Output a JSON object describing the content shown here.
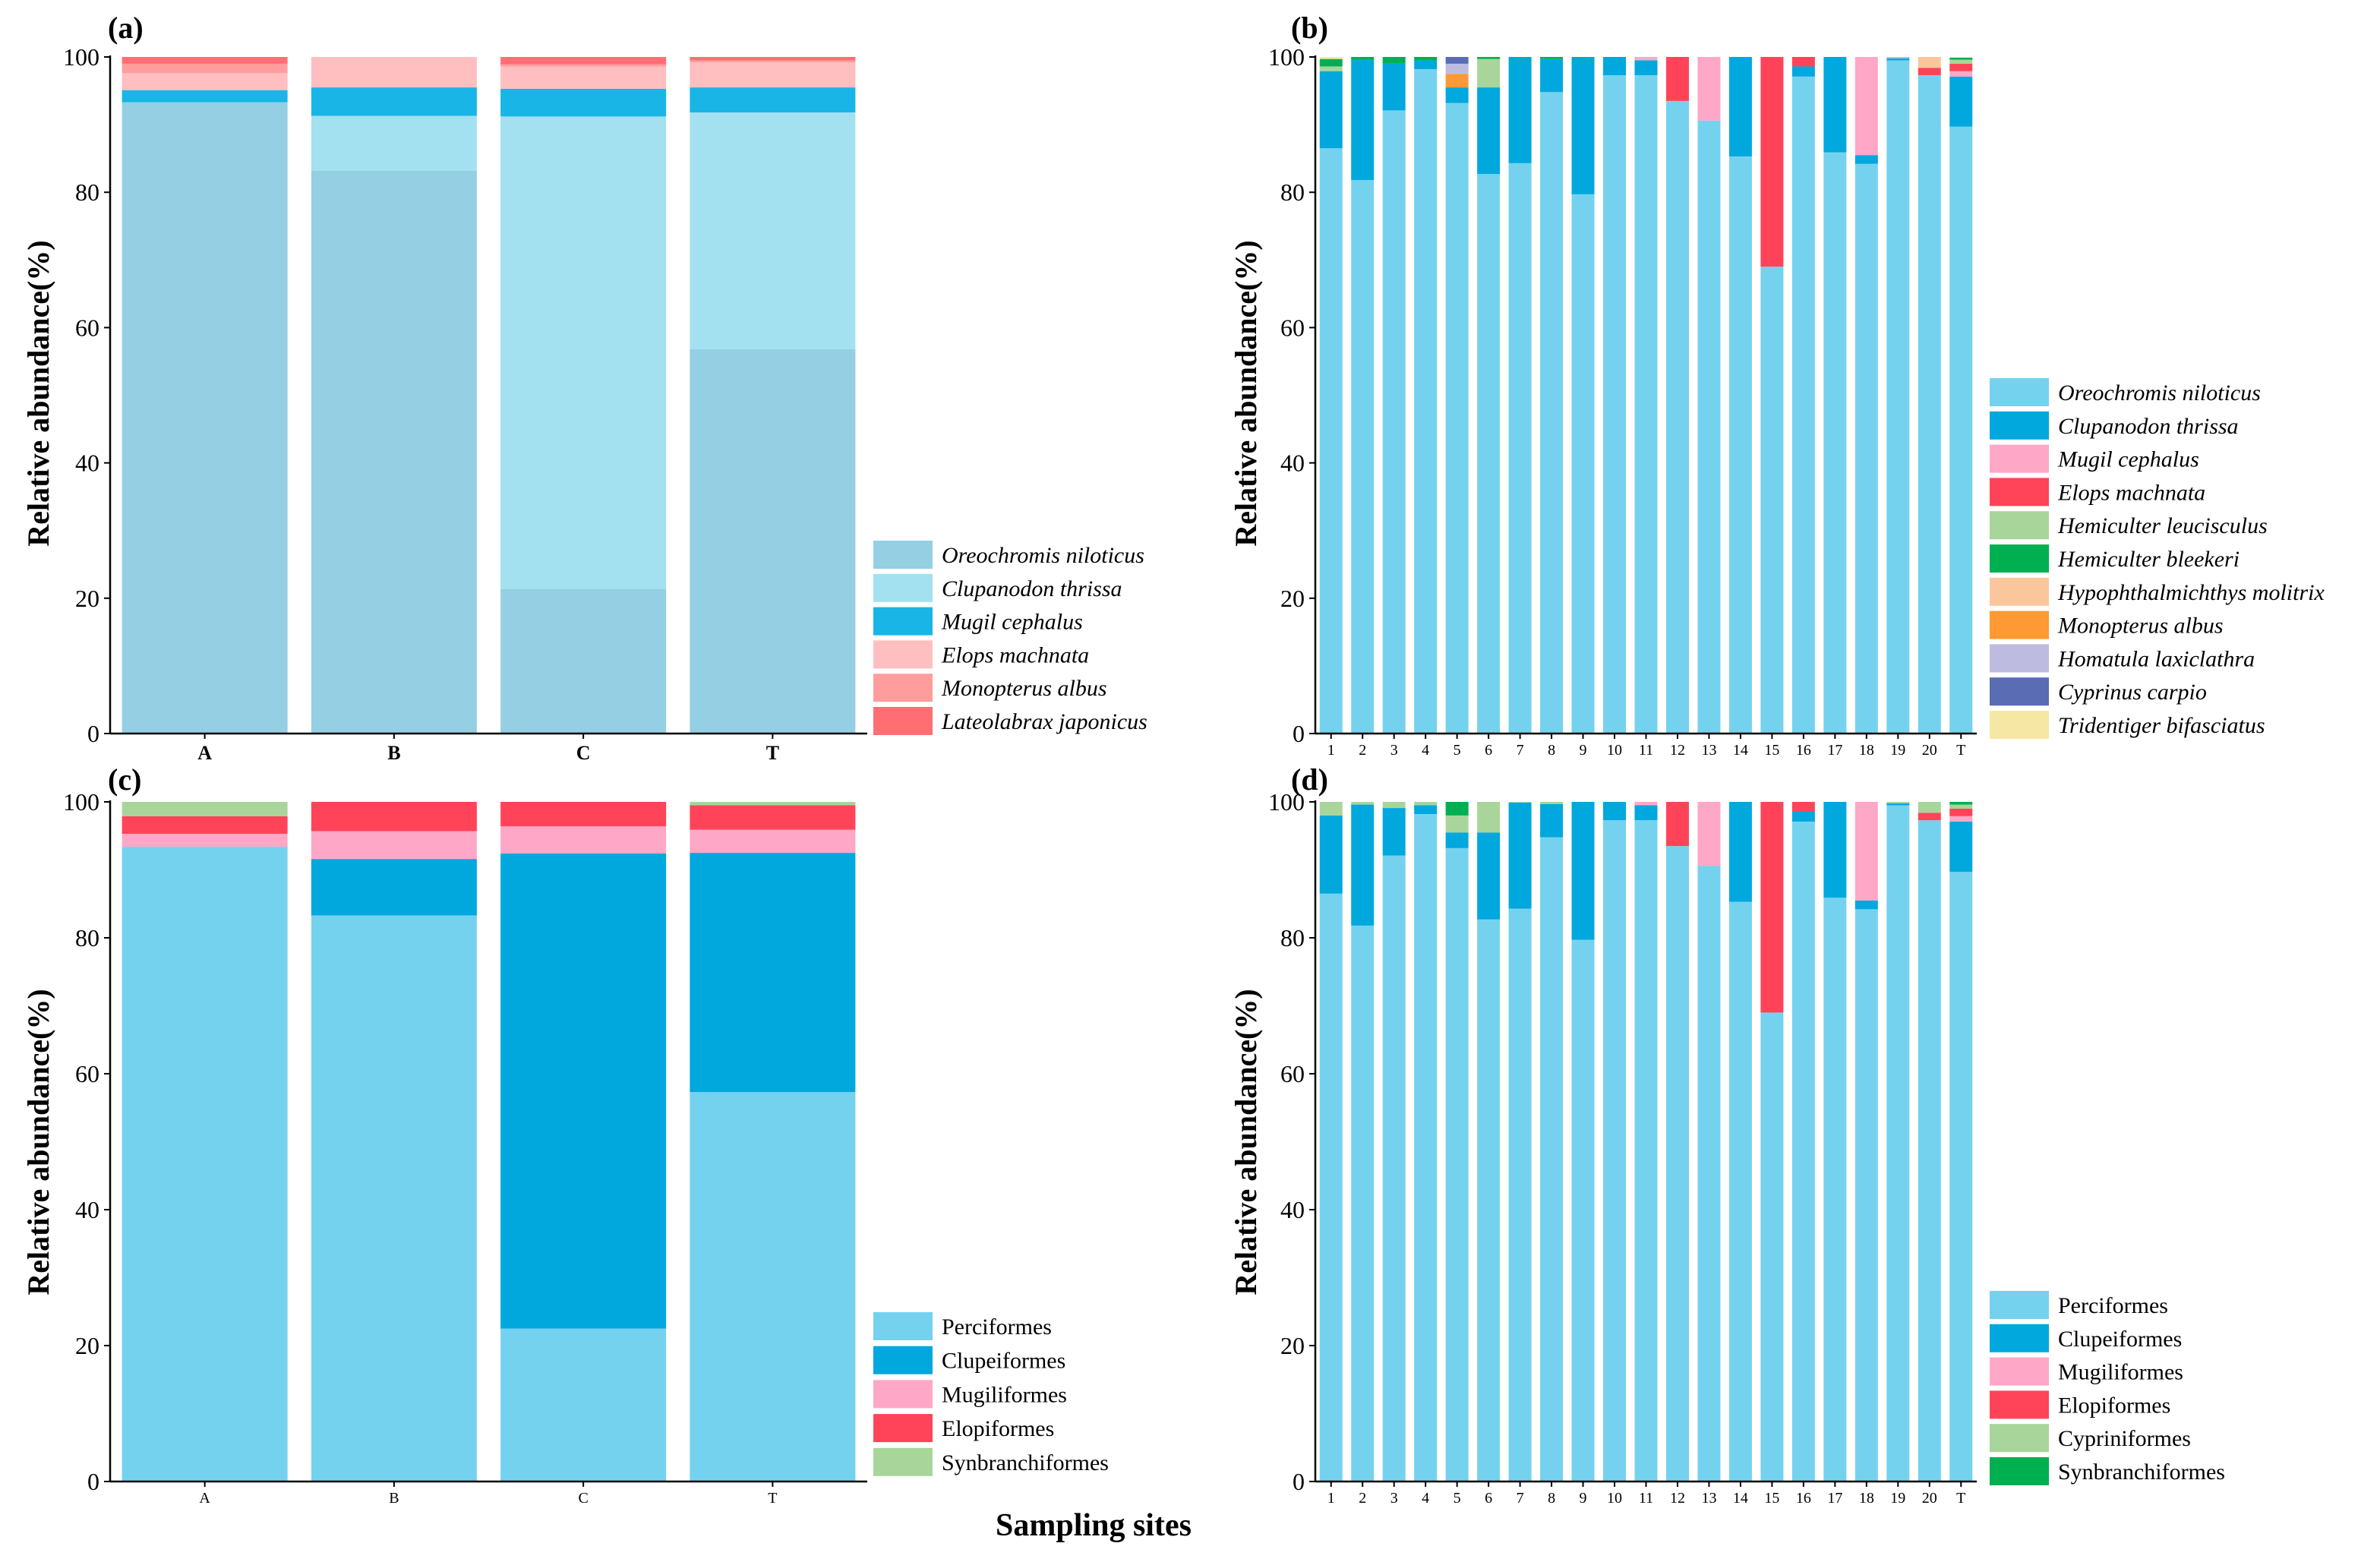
{
  "figure": {
    "x_axis_title": "Sampling sites"
  },
  "colors": {
    "oreochromis_a": "#94CFE3",
    "clupanodon_a": "#A3E1F1",
    "mugil_a": "#19B5E6",
    "elops_a": "#FFBEC0",
    "monopterus_a": "#FF9D9D",
    "lateolabrax_a": "#FF6E73",
    "light_blue": "#75D2EF",
    "blue": "#00A8DE",
    "pink": "#FFA7C6",
    "red": "#FF4459",
    "light_green": "#A8D59A",
    "green": "#00B050",
    "peach": "#FAC79D",
    "orange": "#FF9933",
    "lavender": "#BDBCE0",
    "navy": "#5A6CB4",
    "cream": "#F6E8A4"
  },
  "chart_data": [
    {
      "panel": "(a)",
      "type": "bar",
      "stacked": true,
      "ylabel": "Relative abundance(%)",
      "xlabel": "",
      "ylim": [
        0,
        100
      ],
      "yticks": [
        "0",
        "20",
        "40",
        "60",
        "80",
        "100"
      ],
      "categories": [
        "A",
        "B",
        "C",
        "T"
      ],
      "legend_italic": true,
      "series": [
        {
          "name": "Oreochromis niloticus",
          "color": "#94CFE3",
          "values": [
            93.3,
            83.2,
            21.4,
            56.8
          ]
        },
        {
          "name": "Clupanodon thrissa",
          "color": "#A3E1F1",
          "values": [
            0.0,
            8.1,
            69.8,
            35.0
          ]
        },
        {
          "name": "Mugil cephalus",
          "color": "#19B5E6",
          "values": [
            1.8,
            4.2,
            4.1,
            3.7
          ]
        },
        {
          "name": "Elops machnata",
          "color": "#FFBEC0",
          "values": [
            2.5,
            4.5,
            3.3,
            3.7
          ]
        },
        {
          "name": "Monopterus albus",
          "color": "#FF9D9D",
          "values": [
            1.4,
            0.0,
            0.3,
            0.3
          ]
        },
        {
          "name": "Lateolabrax japonicus",
          "color": "#FF6E73",
          "values": [
            1.0,
            0.0,
            1.1,
            0.5
          ]
        }
      ]
    },
    {
      "panel": "(b)",
      "type": "bar",
      "stacked": true,
      "ylabel": "Relative abundance(%)",
      "xlabel": "",
      "ylim": [
        0,
        100
      ],
      "yticks": [
        "0",
        "20",
        "40",
        "60",
        "80",
        "100"
      ],
      "categories": [
        "1",
        "2",
        "3",
        "4",
        "5",
        "6",
        "7",
        "8",
        "9",
        "10",
        "11",
        "12",
        "13",
        "14",
        "15",
        "16",
        "17",
        "18",
        "19",
        "20",
        "T"
      ],
      "legend_italic": true,
      "series": [
        {
          "name": "Oreochromis niloticus",
          "color": "#75D2EF",
          "values": [
            86.5,
            81.8,
            92.1,
            98.2,
            93.2,
            82.7,
            84.3,
            94.8,
            79.7,
            97.3,
            97.3,
            93.5,
            90.6,
            85.3,
            69.0,
            97.1,
            85.9,
            84.2,
            99.5,
            97.3,
            89.7
          ]
        },
        {
          "name": "Clupanodon thrissa",
          "color": "#00A8DE",
          "values": [
            11.4,
            17.8,
            7.0,
            1.3,
            2.3,
            12.8,
            15.6,
            4.9,
            20.2,
            2.7,
            2.2,
            0.0,
            0.0,
            14.7,
            0.0,
            1.5,
            14.1,
            1.3,
            0.3,
            0.0,
            7.4
          ]
        },
        {
          "name": "Mugil cephalus",
          "color": "#FFA7C6",
          "values": [
            0.0,
            0.0,
            0.0,
            0.0,
            0.0,
            0.0,
            0.0,
            0.0,
            0.0,
            0.0,
            0.3,
            0.0,
            9.4,
            0.0,
            0.0,
            0.0,
            0.0,
            14.5,
            0.0,
            0.0,
            0.8
          ]
        },
        {
          "name": "Elops machnata",
          "color": "#FF4459",
          "values": [
            0.0,
            0.0,
            0.0,
            0.0,
            0.0,
            0.0,
            0.0,
            0.0,
            0.0,
            0.0,
            0.0,
            6.5,
            0.0,
            0.0,
            31.0,
            1.4,
            0.0,
            0.0,
            0.0,
            1.1,
            1.1
          ]
        },
        {
          "name": "Hemiculter leucisculus",
          "color": "#A8D59A",
          "values": [
            0.7,
            0.0,
            0.0,
            0.0,
            0.0,
            4.2,
            0.0,
            0.0,
            0.0,
            0.0,
            0.0,
            0.0,
            0.0,
            0.0,
            0.0,
            0.0,
            0.0,
            0.0,
            0.0,
            0.0,
            0.6
          ]
        },
        {
          "name": "Hemiculter bleekeri",
          "color": "#00B050",
          "values": [
            1.1,
            0.4,
            0.9,
            0.5,
            0.0,
            0.3,
            0.1,
            0.3,
            0.1,
            0.0,
            0.0,
            0.0,
            0.0,
            0.0,
            0.0,
            0.0,
            0.0,
            0.0,
            0.0,
            0.0,
            0.3
          ]
        },
        {
          "name": "Hypophthalmichthys molitrix",
          "color": "#FAC79D",
          "values": [
            0.0,
            0.0,
            0.0,
            0.0,
            0.0,
            0.0,
            0.0,
            0.0,
            0.0,
            0.0,
            0.0,
            0.0,
            0.0,
            0.0,
            0.0,
            0.0,
            0.0,
            0.0,
            0.0,
            1.6,
            0.0
          ]
        },
        {
          "name": "Monopterus albus",
          "color": "#FF9933",
          "values": [
            0.0,
            0.0,
            0.0,
            0.0,
            2.0,
            0.0,
            0.0,
            0.0,
            0.0,
            0.0,
            0.0,
            0.0,
            0.0,
            0.0,
            0.0,
            0.0,
            0.0,
            0.0,
            0.0,
            0.0,
            0.0
          ]
        },
        {
          "name": "Homatula laxiclathra",
          "color": "#BDBCE0",
          "values": [
            0.0,
            0.0,
            0.0,
            0.0,
            1.5,
            0.0,
            0.0,
            0.0,
            0.0,
            0.0,
            0.2,
            0.0,
            0.0,
            0.0,
            0.0,
            0.0,
            0.0,
            0.0,
            0.2,
            0.0,
            0.0
          ]
        },
        {
          "name": "Cyprinus carpio",
          "color": "#5A6CB4",
          "values": [
            0.0,
            0.0,
            0.0,
            0.0,
            1.0,
            0.0,
            0.0,
            0.0,
            0.0,
            0.0,
            0.0,
            0.0,
            0.0,
            0.0,
            0.0,
            0.0,
            0.0,
            0.0,
            0.0,
            0.0,
            0.0
          ]
        },
        {
          "name": "Tridentiger bifasciatus",
          "color": "#F6E8A4",
          "values": [
            0.3,
            0.0,
            0.0,
            0.0,
            0.0,
            0.0,
            0.0,
            0.0,
            0.0,
            0.0,
            0.0,
            0.0,
            0.0,
            0.0,
            0.0,
            0.0,
            0.0,
            0.0,
            0.0,
            0.0,
            0.0
          ]
        }
      ]
    },
    {
      "panel": "(c)",
      "type": "bar",
      "stacked": true,
      "ylabel": "Relative abundance(%)",
      "xlabel": "Sampling sites",
      "ylim": [
        0,
        100
      ],
      "yticks": [
        "0",
        "20",
        "40",
        "60",
        "80",
        "100"
      ],
      "categories": [
        "A",
        "B",
        "C",
        "T"
      ],
      "legend_italic": false,
      "series": [
        {
          "name": "Perciformes",
          "color": "#75D2EF",
          "values": [
            93.4,
            83.3,
            22.5,
            57.3
          ]
        },
        {
          "name": "Clupeiformes",
          "color": "#00A8DE",
          "values": [
            0.0,
            8.3,
            69.9,
            35.2
          ]
        },
        {
          "name": "Mugiliformes",
          "color": "#FFA7C6",
          "values": [
            1.9,
            4.1,
            4.0,
            3.4
          ]
        },
        {
          "name": "Elopiformes",
          "color": "#FF4459",
          "values": [
            2.6,
            4.3,
            3.6,
            3.6
          ]
        },
        {
          "name": "Synbranchiformes",
          "color": "#A8D59A",
          "values": [
            2.1,
            0.0,
            0.0,
            0.5
          ]
        }
      ]
    },
    {
      "panel": "(d)",
      "type": "bar",
      "stacked": true,
      "ylabel": "Relative abundance(%)",
      "xlabel": "",
      "ylim": [
        0,
        100
      ],
      "yticks": [
        "0",
        "20",
        "40",
        "60",
        "80",
        "100"
      ],
      "categories": [
        "1",
        "2",
        "3",
        "4",
        "5",
        "6",
        "7",
        "8",
        "9",
        "10",
        "11",
        "12",
        "13",
        "14",
        "15",
        "16",
        "17",
        "18",
        "19",
        "20",
        "T"
      ],
      "legend_italic": false,
      "series": [
        {
          "name": "Perciformes",
          "color": "#75D2EF",
          "values": [
            86.5,
            81.8,
            92.1,
            98.2,
            93.2,
            82.7,
            84.3,
            94.8,
            79.7,
            97.3,
            97.3,
            93.5,
            90.6,
            85.3,
            69.0,
            97.1,
            85.9,
            84.2,
            99.5,
            97.3,
            89.7
          ]
        },
        {
          "name": "Clupeiformes",
          "color": "#00A8DE",
          "values": [
            11.5,
            17.8,
            7.0,
            1.3,
            2.3,
            12.8,
            15.6,
            4.9,
            20.3,
            2.7,
            2.2,
            0.0,
            0.0,
            14.7,
            0.0,
            1.5,
            14.1,
            1.3,
            0.3,
            0.0,
            7.4
          ]
        },
        {
          "name": "Mugiliformes",
          "color": "#FFA7C6",
          "values": [
            0.0,
            0.0,
            0.0,
            0.0,
            0.0,
            0.0,
            0.0,
            0.0,
            0.0,
            0.0,
            0.5,
            0.0,
            9.4,
            0.0,
            0.0,
            0.0,
            0.0,
            14.5,
            0.0,
            0.0,
            0.8
          ]
        },
        {
          "name": "Elopiformes",
          "color": "#FF4459",
          "values": [
            0.0,
            0.0,
            0.0,
            0.0,
            0.0,
            0.0,
            0.0,
            0.0,
            0.0,
            0.0,
            0.0,
            6.5,
            0.0,
            0.0,
            31.0,
            1.4,
            0.0,
            0.0,
            0.0,
            1.1,
            1.1
          ]
        },
        {
          "name": "Cypriniformes",
          "color": "#A8D59A",
          "values": [
            2.0,
            0.4,
            0.9,
            0.5,
            2.5,
            4.5,
            0.1,
            0.3,
            0.0,
            0.0,
            0.0,
            0.0,
            0.0,
            0.0,
            0.0,
            0.0,
            0.0,
            0.0,
            0.2,
            1.6,
            0.6
          ]
        },
        {
          "name": "Synbranchiformes",
          "color": "#00B050",
          "values": [
            0.0,
            0.0,
            0.0,
            0.0,
            2.0,
            0.0,
            0.0,
            0.0,
            0.0,
            0.0,
            0.0,
            0.0,
            0.0,
            0.0,
            0.0,
            0.0,
            0.0,
            0.0,
            0.0,
            0.0,
            0.4
          ]
        }
      ]
    }
  ]
}
